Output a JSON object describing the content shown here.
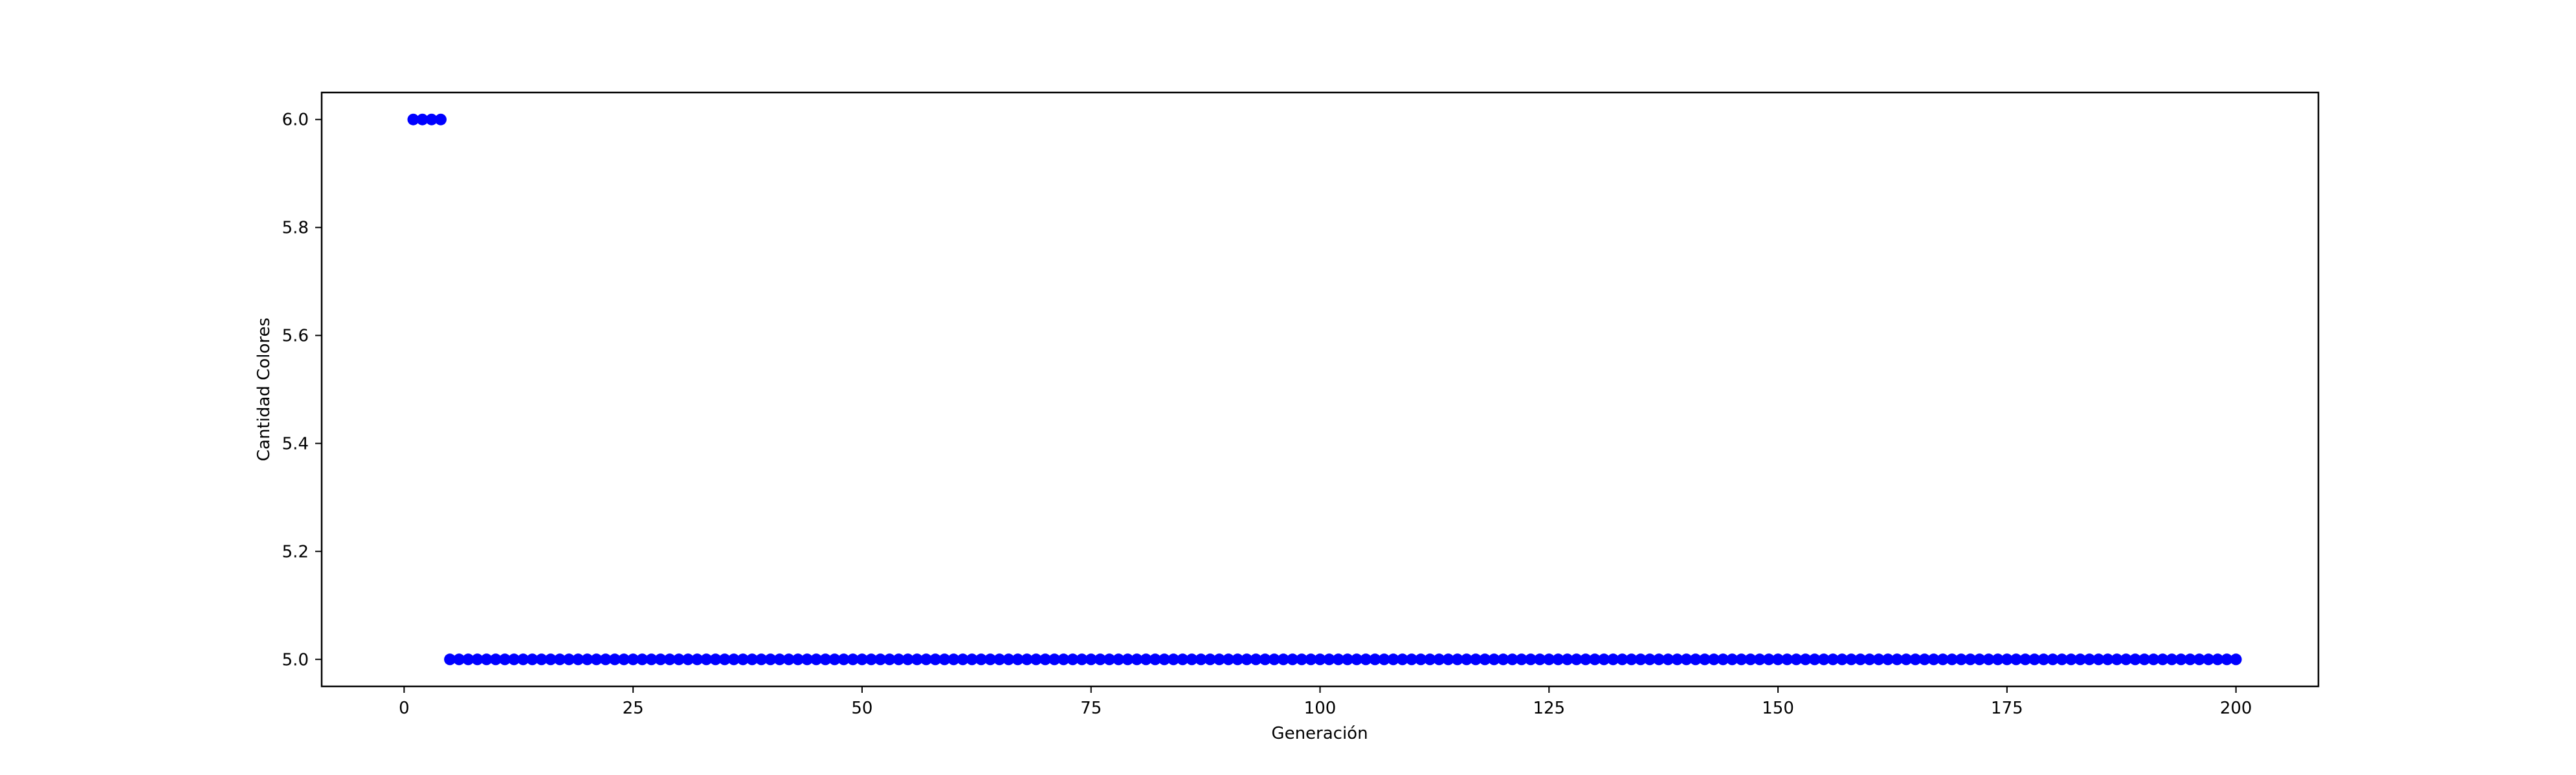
{
  "chart_data": {
    "type": "scatter",
    "title": "",
    "xlabel": "Generación",
    "ylabel": "Cantidad Colores",
    "xlim": [
      -9,
      209
    ],
    "ylim": [
      4.95,
      6.05
    ],
    "xticks": [
      0,
      25,
      50,
      75,
      100,
      125,
      150,
      175,
      200
    ],
    "xtick_labels": [
      "0",
      "25",
      "50",
      "75",
      "100",
      "125",
      "150",
      "175",
      "200"
    ],
    "yticks": [
      5.0,
      5.2,
      5.4,
      5.6,
      5.8,
      6.0
    ],
    "ytick_labels": [
      "5.0",
      "5.2",
      "5.4",
      "5.6",
      "5.8",
      "6.0"
    ],
    "grid": false,
    "legend": "none",
    "marker_color": "#0000ff",
    "series": [
      {
        "segments": [
          {
            "x_from": 1,
            "x_to": 4,
            "y": 6.0
          },
          {
            "x_from": 5,
            "x_to": 200,
            "y": 5.0
          }
        ]
      }
    ]
  }
}
